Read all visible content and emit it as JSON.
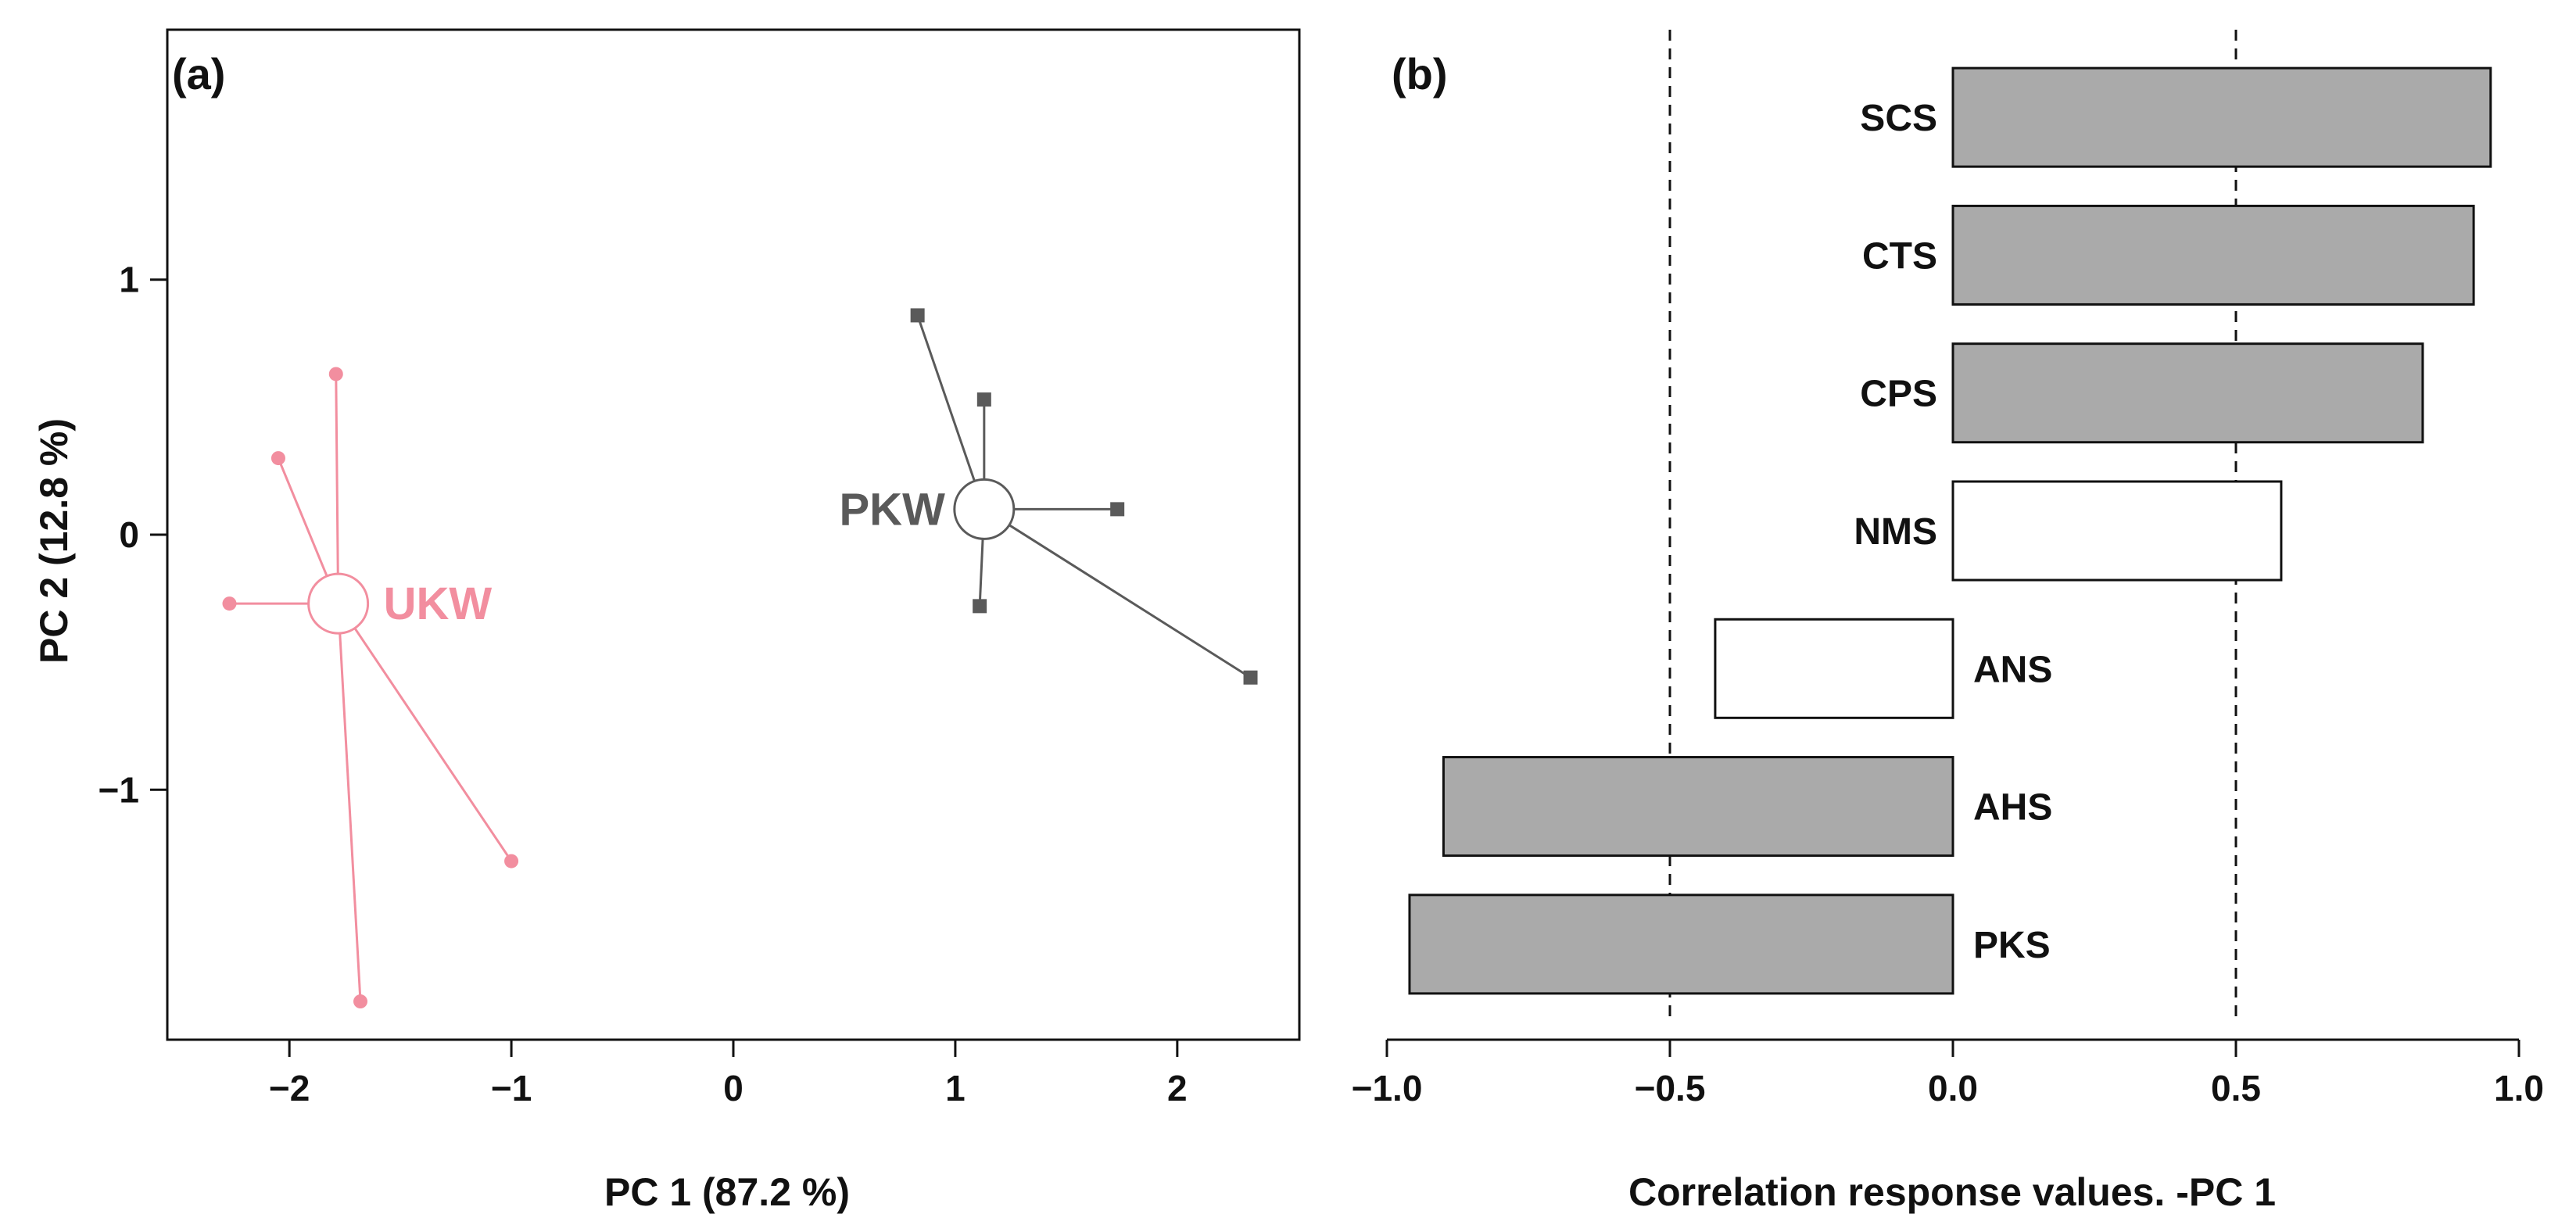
{
  "chart_data": [
    {
      "panel": "(a)",
      "type": "scatter",
      "xlabel": "PC 1 (87.2 %)",
      "ylabel": "PC 2 (12.8 %)",
      "xlim": [
        -2.55,
        2.55
      ],
      "ylim": [
        -1.98,
        1.98
      ],
      "xticks": [
        -2,
        -1,
        0,
        1,
        2
      ],
      "yticks": [
        -1,
        0,
        1
      ],
      "xtick_labels": [
        "−2",
        "−1",
        "0",
        "1",
        "2"
      ],
      "ytick_labels": [
        "−1",
        "0",
        "1"
      ],
      "grid": false,
      "groups": [
        {
          "name": "UKW",
          "color": "#f28e9f",
          "marker": "circle",
          "centroid": {
            "x": -1.78,
            "y": -0.27
          },
          "points": [
            {
              "x": -1.79,
              "y": 0.63
            },
            {
              "x": -2.05,
              "y": 0.3
            },
            {
              "x": -2.27,
              "y": -0.27
            },
            {
              "x": -1.0,
              "y": -1.28
            },
            {
              "x": -1.68,
              "y": -1.83
            }
          ]
        },
        {
          "name": "PKW",
          "color": "#5a5a5a",
          "marker": "square",
          "centroid": {
            "x": 1.13,
            "y": 0.1
          },
          "points": [
            {
              "x": 0.83,
              "y": 0.86
            },
            {
              "x": 1.13,
              "y": 0.53
            },
            {
              "x": 1.73,
              "y": 0.1
            },
            {
              "x": 1.11,
              "y": -0.28
            },
            {
              "x": 2.33,
              "y": -0.56
            }
          ]
        }
      ]
    },
    {
      "panel": "(b)",
      "type": "bar",
      "orientation": "horizontal",
      "xlabel": "Correlation response values. -PC 1",
      "xlim": [
        -1.0,
        1.0
      ],
      "xticks": [
        -1.0,
        -0.5,
        0.0,
        0.5,
        1.0
      ],
      "xtick_labels": [
        "−1.0",
        "−0.5",
        "0.0",
        "0.5",
        "1.0"
      ],
      "reference_lines": [
        -0.5,
        0.5
      ],
      "grid": false,
      "bars": [
        {
          "label": "SCS",
          "value": 0.95,
          "fill": "#aaaaaa"
        },
        {
          "label": "CTS",
          "value": 0.92,
          "fill": "#aaaaaa"
        },
        {
          "label": "CPS",
          "value": 0.83,
          "fill": "#aaaaaa"
        },
        {
          "label": "NMS",
          "value": 0.58,
          "fill": "#ffffff"
        },
        {
          "label": "ANS",
          "value": -0.42,
          "fill": "#ffffff"
        },
        {
          "label": "AHS",
          "value": -0.9,
          "fill": "#aaaaaa"
        },
        {
          "label": "PKS",
          "value": -0.96,
          "fill": "#aaaaaa"
        }
      ]
    }
  ]
}
